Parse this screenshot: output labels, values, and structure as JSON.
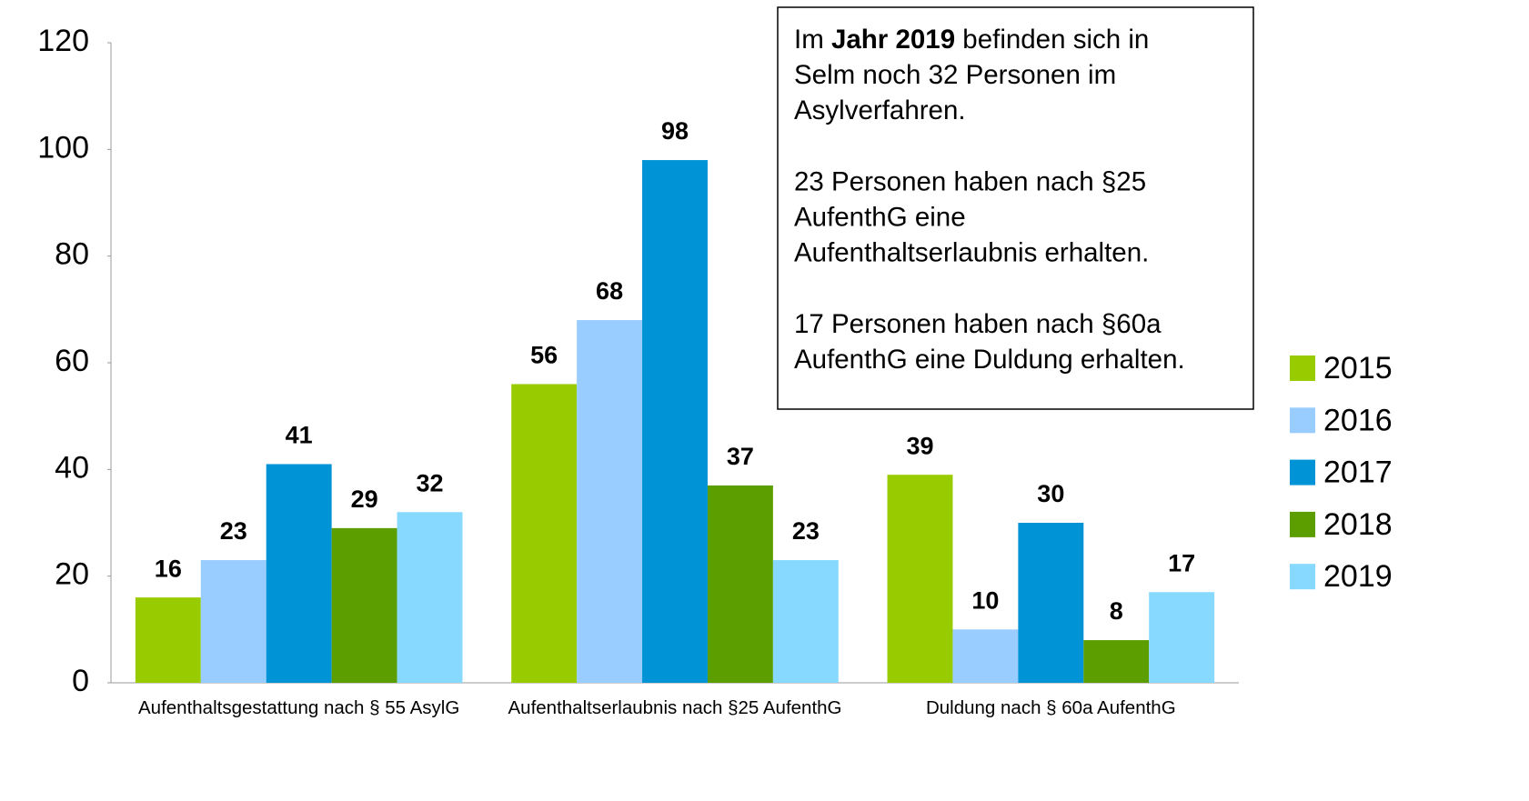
{
  "chart_data": {
    "type": "bar",
    "categories": [
      "Aufenthaltsgestattung nach § 55 AsylG",
      "Aufenthaltserlaubnis nach §25 AufenthG",
      "Duldung nach § 60a AufenthG"
    ],
    "series": [
      {
        "name": "2015",
        "color": "#99cc00",
        "values": [
          16,
          56,
          39
        ]
      },
      {
        "name": "2016",
        "color": "#99ccff",
        "values": [
          23,
          68,
          10
        ]
      },
      {
        "name": "2017",
        "color": "#0093d6",
        "values": [
          41,
          98,
          30
        ]
      },
      {
        "name": "2018",
        "color": "#5c9e00",
        "values": [
          29,
          37,
          8
        ]
      },
      {
        "name": "2019",
        "color": "#87d9ff",
        "values": [
          32,
          23,
          17
        ]
      }
    ],
    "ylim": [
      0,
      120
    ],
    "yticks": [
      0,
      20,
      40,
      60,
      80,
      100,
      120
    ],
    "grid": false,
    "legend": "right",
    "annotation": {
      "intro": "Im ",
      "bold": "Jahr 2019",
      "lines": [
        " befinden sich in",
        "Selm noch 32 Personen im",
        "Asylverfahren.",
        "",
        "23 Personen haben nach §25",
        "AufenthG eine",
        "Aufenthaltserlaubnis erhalten.",
        "",
        "17 Personen haben nach §60a",
        "AufenthG eine Duldung erhalten."
      ]
    }
  }
}
